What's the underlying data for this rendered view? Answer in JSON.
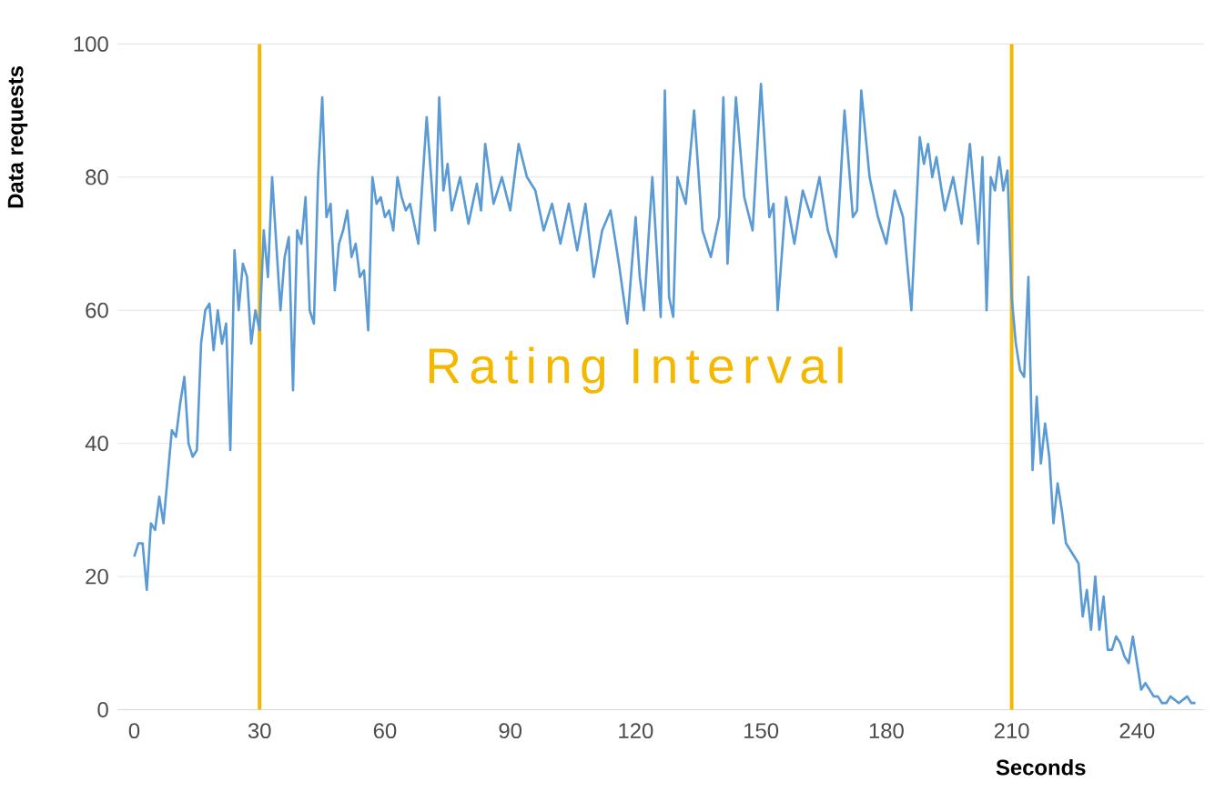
{
  "chart_data": {
    "type": "line",
    "xlabel": "Seconds",
    "ylabel": "Data requests",
    "xlim": [
      -4,
      256
    ],
    "ylim": [
      0,
      100
    ],
    "xticks": [
      0,
      30,
      60,
      90,
      120,
      150,
      180,
      210,
      240
    ],
    "yticks": [
      0,
      20,
      40,
      60,
      80,
      100
    ],
    "grid": "y",
    "marker": "none",
    "line_style": "solid",
    "annotations": [
      "Rating Interval"
    ],
    "ref_lines": [
      {
        "axis": "x",
        "value": 30,
        "color": "#f5b800"
      },
      {
        "axis": "x",
        "value": 210,
        "color": "#f5b800"
      }
    ],
    "series": [
      {
        "color": "#5b9bd5",
        "x": [
          0,
          1,
          2,
          3,
          4,
          5,
          6,
          7,
          8,
          9,
          10,
          11,
          12,
          13,
          14,
          15,
          16,
          17,
          18,
          19,
          20,
          21,
          22,
          23,
          24,
          25,
          26,
          27,
          28,
          29,
          30,
          31,
          32,
          33,
          34,
          35,
          36,
          37,
          38,
          39,
          40,
          41,
          42,
          43,
          44,
          45,
          46,
          47,
          48,
          49,
          50,
          51,
          52,
          53,
          54,
          55,
          56,
          57,
          58,
          59,
          60,
          61,
          62,
          63,
          64,
          65,
          66,
          68,
          70,
          72,
          73,
          74,
          75,
          76,
          78,
          80,
          82,
          83,
          84,
          86,
          87,
          88,
          90,
          92,
          94,
          96,
          98,
          100,
          102,
          104,
          106,
          108,
          110,
          112,
          114,
          116,
          118,
          120,
          121,
          122,
          124,
          126,
          127,
          128,
          129,
          130,
          132,
          134,
          136,
          138,
          140,
          141,
          142,
          144,
          146,
          148,
          150,
          152,
          153,
          154,
          156,
          158,
          160,
          162,
          164,
          166,
          168,
          170,
          172,
          173,
          174,
          176,
          178,
          180,
          182,
          184,
          186,
          188,
          189,
          190,
          191,
          192,
          194,
          196,
          198,
          200,
          202,
          203,
          204,
          205,
          206,
          207,
          208,
          209,
          210,
          211,
          212,
          213,
          214,
          215,
          216,
          217,
          218,
          219,
          220,
          221,
          222,
          223,
          224,
          226,
          227,
          228,
          229,
          230,
          231,
          232,
          233,
          234,
          235,
          236,
          237,
          238,
          239,
          240,
          241,
          242,
          243,
          244,
          245,
          246,
          247,
          248,
          250,
          252,
          253,
          254
        ],
        "values": [
          23,
          25,
          25,
          18,
          28,
          27,
          32,
          28,
          35,
          42,
          41,
          46,
          50,
          40,
          38,
          39,
          55,
          60,
          61,
          54,
          60,
          55,
          58,
          39,
          69,
          60,
          67,
          65,
          55,
          60,
          57,
          72,
          65,
          80,
          70,
          60,
          68,
          71,
          48,
          72,
          70,
          77,
          60,
          58,
          80,
          92,
          74,
          76,
          63,
          70,
          72,
          75,
          68,
          70,
          65,
          66,
          57,
          80,
          76,
          77,
          74,
          75,
          72,
          80,
          77,
          75,
          76,
          70,
          89,
          72,
          92,
          78,
          82,
          75,
          80,
          73,
          79,
          75,
          85,
          76,
          78,
          80,
          75,
          85,
          80,
          78,
          72,
          76,
          70,
          76,
          69,
          76,
          65,
          72,
          75,
          67,
          58,
          74,
          65,
          60,
          80,
          59,
          93,
          62,
          59,
          80,
          76,
          90,
          72,
          68,
          74,
          92,
          67,
          92,
          77,
          72,
          94,
          74,
          76,
          60,
          77,
          70,
          78,
          74,
          80,
          72,
          68,
          90,
          74,
          75,
          93,
          80,
          74,
          70,
          78,
          74,
          60,
          86,
          82,
          85,
          80,
          83,
          75,
          80,
          73,
          85,
          70,
          83,
          60,
          80,
          78,
          83,
          78,
          81,
          62,
          55,
          51,
          50,
          65,
          36,
          47,
          37,
          43,
          38,
          28,
          34,
          30,
          25,
          24,
          22,
          14,
          18,
          12,
          20,
          12,
          17,
          9,
          9,
          11,
          10,
          8,
          7,
          11,
          7,
          3,
          4,
          3,
          2,
          2,
          1,
          1,
          2,
          1,
          2,
          1,
          1
        ]
      }
    ]
  }
}
